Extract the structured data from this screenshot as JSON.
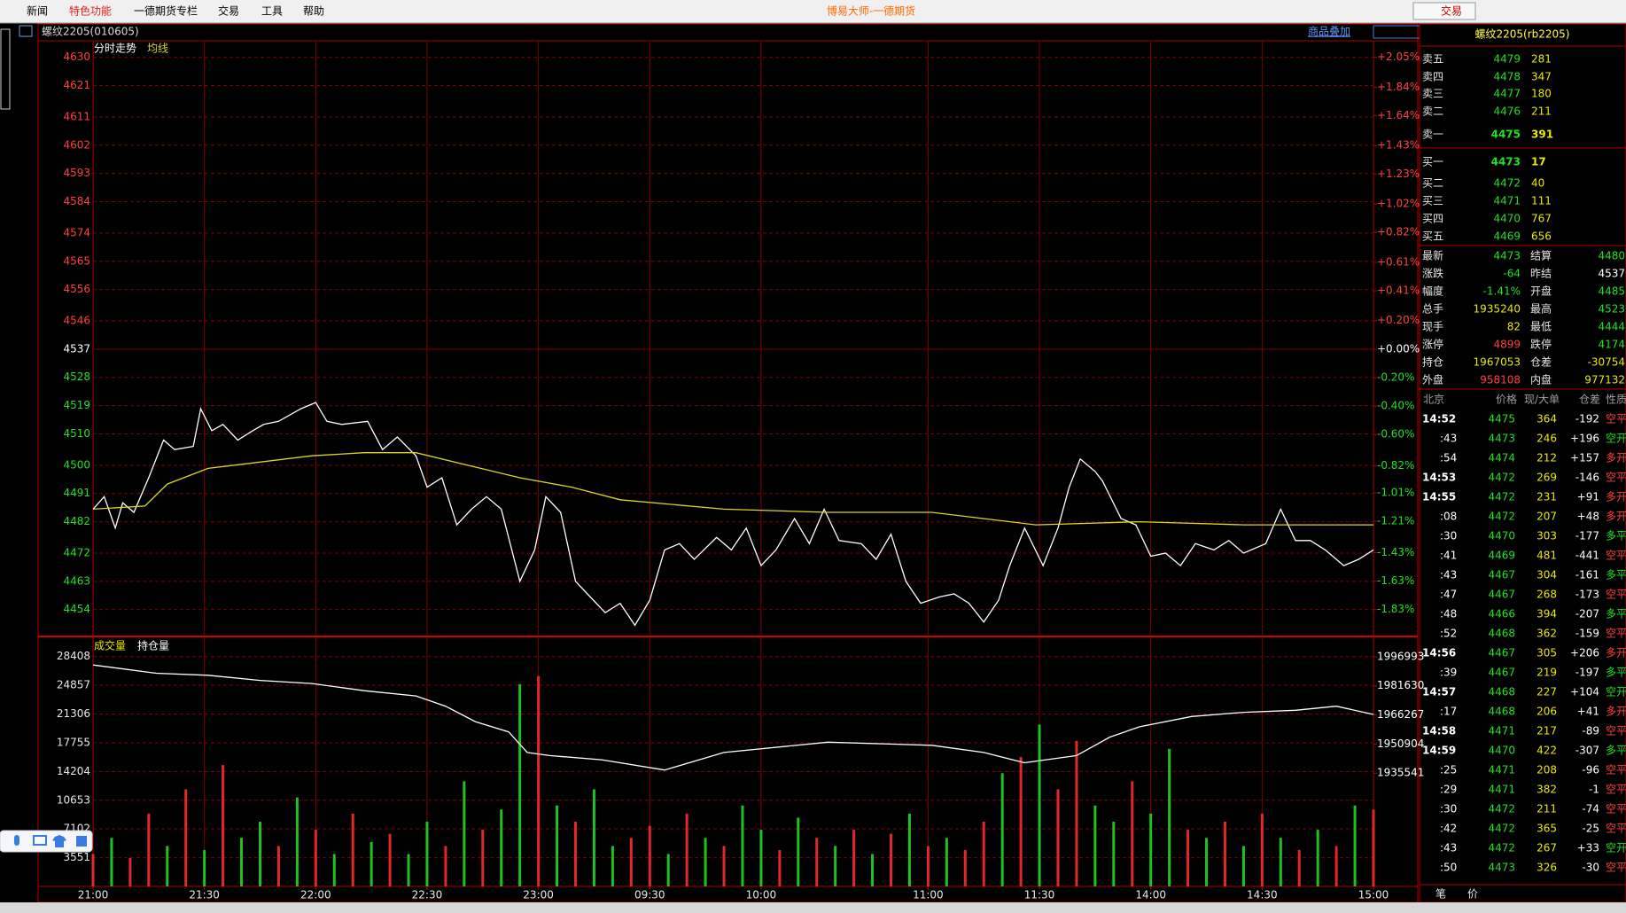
{
  "menu": {
    "items": [
      "新闻",
      "特色功能",
      "一德期货专栏",
      "交易",
      "工具",
      "帮助"
    ],
    "title": "博易大师-一德期货",
    "trade_button": "交易"
  },
  "chart_data": [
    {
      "type": "line",
      "title": "螺纹2205(010605)",
      "overlay_button": "商品叠加",
      "grid": true,
      "xlim": [
        0,
        345
      ],
      "ylim": [
        4446,
        4635
      ],
      "y2lim": [
        -2.006,
        2.16
      ],
      "yticks": [
        4630,
        4621,
        4611,
        4602,
        4593,
        4584,
        4574,
        4565,
        4556,
        4546,
        4537,
        4528,
        4519,
        4510,
        4500,
        4491,
        4482,
        4472,
        4463,
        4454
      ],
      "y2ticks": [
        {
          "value": 2.05,
          "label": "+2.05%"
        },
        {
          "value": 1.84,
          "label": "+1.84%"
        },
        {
          "value": 1.64,
          "label": "+1.64%"
        },
        {
          "value": 1.43,
          "label": "+1.43%"
        },
        {
          "value": 1.23,
          "label": "+1.23%"
        },
        {
          "value": 1.02,
          "label": "+1.02%"
        },
        {
          "value": 0.82,
          "label": "+0.82%"
        },
        {
          "value": 0.61,
          "label": "+0.61%"
        },
        {
          "value": 0.41,
          "label": "+0.41%"
        },
        {
          "value": 0.2,
          "label": "+0.20%"
        },
        {
          "value": 0,
          "label": "+0.00%"
        },
        {
          "value": -0.2,
          "label": "-0.20%"
        },
        {
          "value": -0.4,
          "label": "-0.40%"
        },
        {
          "value": -0.6,
          "label": "-0.60%"
        },
        {
          "value": -0.82,
          "label": "-0.82%"
        },
        {
          "value": -1.01,
          "label": "-1.01%"
        },
        {
          "value": -1.21,
          "label": "-1.21%"
        },
        {
          "value": -1.43,
          "label": "-1.43%"
        },
        {
          "value": -1.63,
          "label": "-1.63%"
        },
        {
          "value": -1.83,
          "label": "-1.83%"
        }
      ],
      "series": [
        {
          "name": "分时走势",
          "color": "#ffffff",
          "x": [
            0,
            3,
            6,
            8,
            11,
            15,
            19,
            22,
            27,
            29,
            32,
            35,
            39,
            43,
            46,
            50,
            56,
            60,
            63,
            67,
            74,
            78,
            82,
            87,
            90,
            94,
            98,
            102,
            106,
            110,
            115,
            119,
            122,
            126,
            130,
            134,
            138,
            142,
            146,
            150,
            154,
            158,
            162,
            168,
            172,
            176,
            180,
            184,
            189,
            193,
            197,
            201,
            207,
            211,
            215,
            219,
            223,
            228,
            232,
            236,
            240,
            244,
            247,
            251,
            256,
            260,
            263,
            266,
            270,
            272,
            277,
            281,
            285,
            289,
            293,
            297,
            302,
            306,
            310,
            316,
            320,
            324,
            328,
            332,
            337,
            341,
            345
          ],
          "values": [
            4486,
            4490,
            4480,
            4488,
            4485,
            4496,
            4508,
            4505,
            4506,
            4518,
            4511,
            4513,
            4508,
            4511,
            4513,
            4514,
            4518,
            4520,
            4514,
            4513,
            4514,
            4505,
            4509,
            4503,
            4493,
            4496,
            4481,
            4486,
            4490,
            4486,
            4463,
            4473,
            4490,
            4485,
            4463,
            4458,
            4453,
            4456,
            4449,
            4457,
            4473,
            4475,
            4470,
            4477,
            4473,
            4480,
            4468,
            4473,
            4483,
            4475,
            4486,
            4476,
            4475,
            4470,
            4478,
            4463,
            4456,
            4458,
            4459,
            4456,
            4450,
            4457,
            4468,
            4480,
            4468,
            4480,
            4493,
            4502,
            4498,
            4495,
            4483,
            4481,
            4471,
            4472,
            4468,
            4475,
            4473,
            4476,
            4472,
            4475,
            4486,
            4476,
            4476,
            4473,
            4468,
            4470,
            4473
          ]
        },
        {
          "name": "均线",
          "color": "#d8d820",
          "x": [
            0,
            14,
            20,
            31,
            59,
            73,
            87,
            101,
            115,
            129,
            142,
            170,
            198,
            226,
            254,
            282,
            310,
            345
          ],
          "values": [
            4486,
            4487,
            4494,
            4499,
            4503,
            4504,
            4504,
            4500,
            4496,
            4493,
            4489,
            4486,
            4485,
            4485,
            4481,
            4482,
            4481,
            4481
          ]
        }
      ]
    },
    {
      "type": "combo",
      "grid": true,
      "xlim": [
        0,
        345
      ],
      "ylim": [
        0,
        30680
      ],
      "y2lim": [
        1875760,
        2006780
      ],
      "xticks": [
        {
          "value": 0,
          "label": "21:00"
        },
        {
          "value": 30,
          "label": "21:30"
        },
        {
          "value": 60,
          "label": "22:00"
        },
        {
          "value": 90,
          "label": "22:30"
        },
        {
          "value": 120,
          "label": "23:00"
        },
        {
          "value": 150,
          "label": "09:30"
        },
        {
          "value": 180,
          "label": "10:00"
        },
        {
          "value": 225,
          "label": "11:00"
        },
        {
          "value": 255,
          "label": "11:30"
        },
        {
          "value": 285,
          "label": "14:00"
        },
        {
          "value": 315,
          "label": "14:30"
        },
        {
          "value": 345,
          "label": "15:00"
        }
      ],
      "yticks": [
        28408,
        24857,
        21306,
        17755,
        14204,
        10653,
        7102,
        3551
      ],
      "y2ticks": [
        1996993,
        1981630,
        1966267,
        1950904,
        1935541
      ],
      "series": [
        {
          "name": "成交量",
          "type": "bar",
          "color": "#e8e800",
          "x": [
            0,
            5,
            10,
            15,
            20,
            25,
            30,
            35,
            40,
            45,
            50,
            55,
            60,
            65,
            70,
            75,
            80,
            85,
            90,
            95,
            100,
            105,
            110,
            115,
            120,
            125,
            130,
            135,
            140,
            145,
            150,
            155,
            160,
            165,
            170,
            175,
            180,
            185,
            190,
            195,
            200,
            205,
            210,
            215,
            220,
            225,
            230,
            235,
            240,
            245,
            250,
            255,
            260,
            265,
            270,
            275,
            280,
            285,
            290,
            295,
            300,
            305,
            310,
            315,
            320,
            325,
            330,
            335,
            340,
            345
          ],
          "values": [
            4000,
            6000,
            3500,
            9000,
            5000,
            12000,
            4500,
            15000,
            6000,
            8000,
            5000,
            11000,
            7000,
            4000,
            9000,
            5500,
            6500,
            4000,
            8000,
            5000,
            13000,
            7000,
            9500,
            25000,
            26000,
            10000,
            8000,
            12000,
            5000,
            6000,
            7500,
            4000,
            9000,
            6000,
            5000,
            10000,
            7000,
            4500,
            8500,
            6000,
            5000,
            7000,
            4000,
            6500,
            9000,
            5000,
            6000,
            4500,
            8000,
            14000,
            16000,
            20000,
            12000,
            18000,
            10000,
            8000,
            13000,
            9000,
            17000,
            7000,
            6000,
            8000,
            5000,
            9000,
            6000,
            4500,
            7000,
            5000,
            10000,
            9500
          ],
          "colors": [
            "#e02828",
            "#20c020",
            "#e02828",
            "#e02828",
            "#20c020",
            "#e02828",
            "#20c020",
            "#e02828",
            "#20c020",
            "#20c020",
            "#e02828",
            "#20c020",
            "#e02828",
            "#20c020",
            "#e02828",
            "#20c020",
            "#e02828",
            "#20c020",
            "#20c020",
            "#e02828",
            "#20c020",
            "#e02828",
            "#20c020",
            "#20c020",
            "#e02828",
            "#20c020",
            "#e02828",
            "#20c020",
            "#20c020",
            "#e02828",
            "#e02828",
            "#20c020",
            "#e02828",
            "#20c020",
            "#e02828",
            "#20c020",
            "#20c020",
            "#e02828",
            "#20c020",
            "#e02828",
            "#20c020",
            "#e02828",
            "#20c020",
            "#e02828",
            "#20c020",
            "#e02828",
            "#20c020",
            "#e02828",
            "#e02828",
            "#20c020",
            "#e02828",
            "#20c020",
            "#e02828",
            "#e02828",
            "#20c020",
            "#20c020",
            "#e02828",
            "#20c020",
            "#20c020",
            "#e02828",
            "#20c020",
            "#e02828",
            "#20c020",
            "#e02828",
            "#20c020",
            "#e02828",
            "#20c020",
            "#e02828",
            "#20c020",
            "#e02828"
          ]
        },
        {
          "name": "持仓量",
          "type": "line",
          "axis": "y2",
          "color": "#ffffff",
          "x": [
            0,
            17,
            31,
            45,
            59,
            73,
            87,
            95,
            103,
            112,
            117,
            123,
            137,
            154,
            170,
            198,
            226,
            240,
            251,
            265,
            274,
            282,
            296,
            310,
            324,
            335,
            345
          ],
          "values": [
            1992645,
            1988297,
            1987210,
            1984493,
            1982863,
            1979058,
            1976341,
            1970906,
            1962754,
            1957319,
            1946450,
            1944819,
            1942645,
            1937210,
            1946450,
            1951884,
            1950254,
            1946450,
            1941015,
            1944819,
            1954602,
            1960036,
            1965471,
            1967645,
            1968732,
            1970906,
            1966558
          ]
        }
      ]
    }
  ],
  "quote": {
    "title": "螺纹2205(rb2205)",
    "book": [
      {
        "label": "卖五",
        "price": 4479,
        "volume": 281
      },
      {
        "label": "卖四",
        "price": 4478,
        "volume": 347
      },
      {
        "label": "卖三",
        "price": 4477,
        "volume": 180
      },
      {
        "label": "卖二",
        "price": 4476,
        "volume": 211
      },
      {
        "label": "卖一",
        "price": 4475,
        "volume": 391
      },
      {
        "label": "买一",
        "price": 4473,
        "volume": 17
      },
      {
        "label": "买二",
        "price": 4472,
        "volume": 40
      },
      {
        "label": "买三",
        "price": 4471,
        "volume": 111
      },
      {
        "label": "买四",
        "price": 4470,
        "volume": 767
      },
      {
        "label": "买五",
        "price": 4469,
        "volume": 656
      }
    ],
    "rows": [
      {
        "label": "最新",
        "value": 4473,
        "color": "#20e020",
        "label2": "结算",
        "value2": 4480,
        "color2": "#20e020"
      },
      {
        "label": "涨跌",
        "value": -64,
        "color": "#20e020",
        "label2": "昨结",
        "value2": 4537,
        "color2": "#ffffff"
      },
      {
        "label": "幅度",
        "value": "-1.41%",
        "color": "#20e020",
        "label2": "开盘",
        "value2": 4485,
        "color2": "#20e020"
      },
      {
        "label": "总手",
        "value": 1935240,
        "color": "#e8e800",
        "label2": "最高",
        "value2": 4523,
        "color2": "#20e020"
      },
      {
        "label": "现手",
        "value": 82,
        "color": "#e8e800",
        "label2": "最低",
        "value2": 4444,
        "color2": "#20e020"
      },
      {
        "label": "涨停",
        "value": 4899,
        "color": "#ff4040",
        "label2": "跌停",
        "value2": 4174,
        "color2": "#20e020"
      },
      {
        "label": "持仓",
        "value": 1967053,
        "color": "#e8e800",
        "label2": "仓差",
        "value2": -30754,
        "color2": "#e8e800"
      },
      {
        "label": "外盘",
        "value": 958108,
        "color": "#ff4040",
        "label2": "内盘",
        "value2": 977132,
        "color2": "#e8e800"
      }
    ]
  },
  "trades": {
    "header": [
      "北京",
      "价格",
      "现/大单",
      "仓差",
      "性质"
    ],
    "rows": [
      [
        "14:52",
        4475,
        364,
        "-192",
        "空平"
      ],
      [
        ":43",
        4473,
        246,
        "+196",
        "空开"
      ],
      [
        ":54",
        4474,
        212,
        "+157",
        "多开"
      ],
      [
        "14:53",
        4472,
        269,
        "-146",
        "空平"
      ],
      [
        "14:55",
        4472,
        231,
        "+91",
        "多开"
      ],
      [
        ":08",
        4472,
        207,
        "+48",
        "多开"
      ],
      [
        ":30",
        4470,
        303,
        "-177",
        "多平"
      ],
      [
        ":41",
        4469,
        481,
        "-441",
        "空平"
      ],
      [
        ":43",
        4467,
        304,
        "-161",
        "多平"
      ],
      [
        ":47",
        4467,
        268,
        "-173",
        "空平"
      ],
      [
        ":48",
        4466,
        394,
        "-207",
        "多平"
      ],
      [
        ":52",
        4468,
        362,
        "-159",
        "空平"
      ],
      [
        "14:56",
        4467,
        305,
        "+206",
        "多开"
      ],
      [
        ":39",
        4467,
        219,
        "-197",
        "多平"
      ],
      [
        "14:57",
        4468,
        227,
        "+104",
        "空开"
      ],
      [
        ":17",
        4468,
        206,
        "+41",
        "多开"
      ],
      [
        "14:58",
        4471,
        217,
        "-89",
        "空平"
      ],
      [
        "14:59",
        4470,
        422,
        "-307",
        "多平"
      ],
      [
        ":25",
        4471,
        208,
        "-96",
        "空平"
      ],
      [
        ":29",
        4471,
        382,
        "-1",
        "空平"
      ],
      [
        ":30",
        4472,
        211,
        "-74",
        "空平"
      ],
      [
        ":42",
        4472,
        365,
        "-25",
        "空平"
      ],
      [
        ":43",
        4472,
        267,
        "+33",
        "空开"
      ],
      [
        ":50",
        4473,
        326,
        "-30",
        "空平"
      ]
    ],
    "tabs": [
      "笔",
      "价"
    ]
  }
}
